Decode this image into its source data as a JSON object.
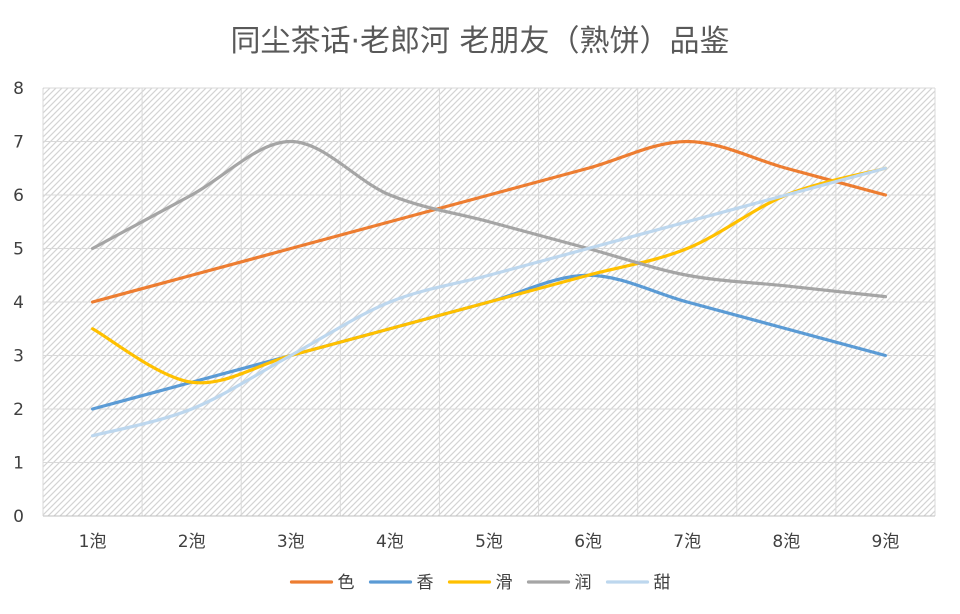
{
  "chart_data": {
    "type": "line",
    "title": "同尘茶话·老郎河 老朋友（熟饼）品鉴",
    "categories": [
      "1泡",
      "2泡",
      "3泡",
      "4泡",
      "5泡",
      "6泡",
      "7泡",
      "8泡",
      "9泡"
    ],
    "ylim": [
      0,
      8
    ],
    "yticks": [
      "0",
      "1",
      "2",
      "3",
      "4",
      "5",
      "6",
      "7",
      "8"
    ],
    "grid": true,
    "smooth": true,
    "legend_position": "bottom",
    "series": [
      {
        "name": "色",
        "color": "#ED7D31",
        "values": [
          4,
          4.5,
          5,
          5.5,
          6,
          6.5,
          7,
          6.5,
          6
        ]
      },
      {
        "name": "香",
        "color": "#5B9BD5",
        "values": [
          2,
          2.5,
          3,
          3.5,
          4,
          4.5,
          4,
          3.5,
          3
        ]
      },
      {
        "name": "滑",
        "color": "#FFC000",
        "values": [
          3.5,
          2.5,
          3,
          3.5,
          4,
          4.5,
          5,
          6,
          6.5
        ]
      },
      {
        "name": "润",
        "color": "#A5A5A5",
        "values": [
          5,
          6,
          7,
          6,
          5.5,
          5,
          4.5,
          4.3,
          4.1
        ]
      },
      {
        "name": "甜",
        "color": "#BDD7EE",
        "values": [
          1.5,
          2,
          3,
          4,
          4.5,
          5,
          5.5,
          6,
          6.5
        ]
      }
    ]
  }
}
